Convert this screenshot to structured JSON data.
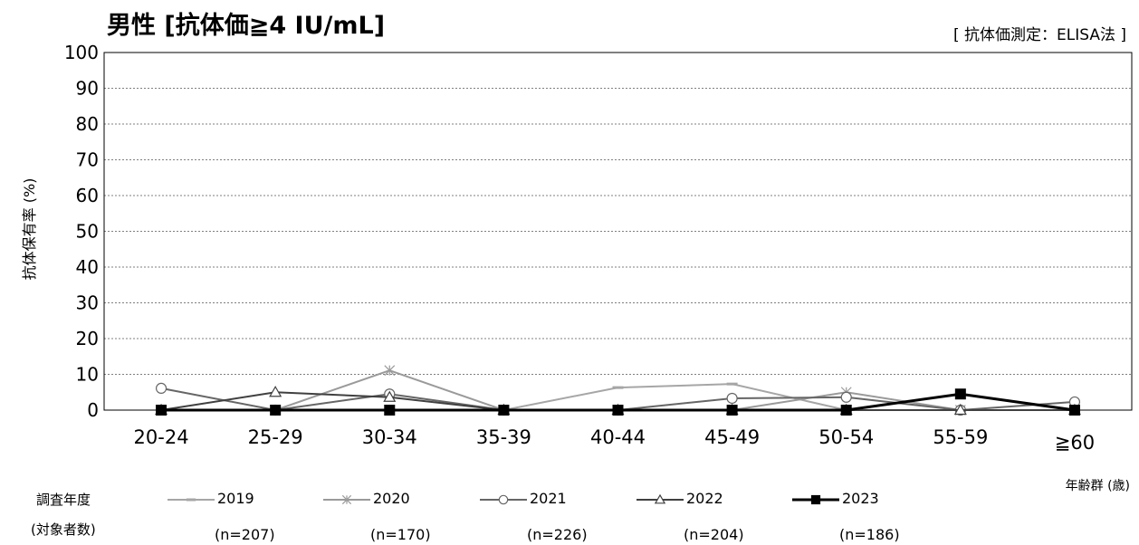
{
  "title": "男性 [抗体価≧4 IU/mL]",
  "method_note": "[ 抗体価測定：ELISA法 ]",
  "legend_heading": "調査年度",
  "legend_subheading": "(対象者数)",
  "chart_data": {
    "type": "line",
    "title": "男性 [抗体価≧4 IU/mL]",
    "ylabel": "抗体保有率 (%)",
    "xlabel": "年齢群 (歳)",
    "ylim": [
      0,
      100
    ],
    "yticks": [
      0,
      10,
      20,
      30,
      40,
      50,
      60,
      70,
      80,
      90,
      100
    ],
    "grid": true,
    "categories": [
      "20-24",
      "25-29",
      "30-34",
      "35-39",
      "40-44",
      "45-49",
      "50-54",
      "55-59",
      "≧60"
    ],
    "series": [
      {
        "name": "2019",
        "n_label": "(n=207)",
        "color": "#a6a6a6",
        "marker": "dash",
        "values": [
          0,
          0,
          0,
          0,
          6.3,
          7.3,
          0,
          0,
          0
        ]
      },
      {
        "name": "2020",
        "n_label": "(n=170)",
        "color": "#9a9a9a",
        "marker": "asterisk",
        "values": [
          0,
          0,
          11.1,
          0,
          0,
          0,
          5.0,
          0,
          0
        ]
      },
      {
        "name": "2021",
        "n_label": "(n=226)",
        "color": "#666666",
        "marker": "circle",
        "values": [
          6.1,
          0,
          4.5,
          0,
          0,
          3.3,
          3.6,
          0,
          2.3
        ]
      },
      {
        "name": "2022",
        "n_label": "(n=204)",
        "color": "#404040",
        "marker": "triangle",
        "values": [
          0,
          5.0,
          3.6,
          0,
          0,
          0,
          0,
          0,
          0
        ]
      },
      {
        "name": "2023",
        "n_label": "(n=186)",
        "color": "#000000",
        "marker": "square",
        "values": [
          0,
          0,
          0,
          0,
          0,
          0,
          0,
          4.5,
          0
        ]
      }
    ]
  }
}
